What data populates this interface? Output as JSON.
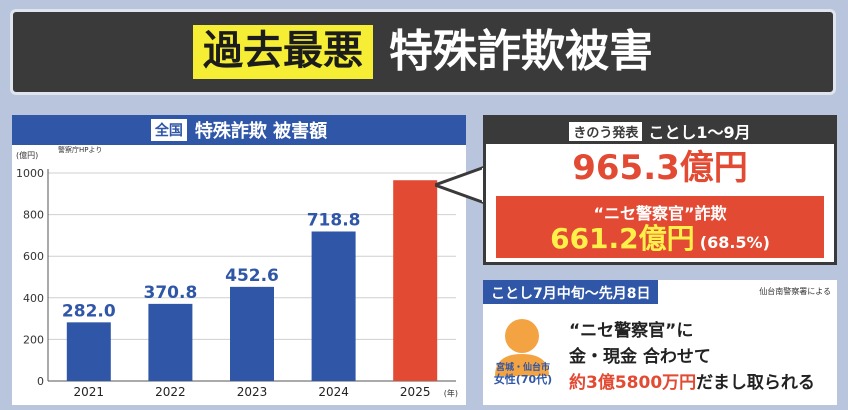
{
  "header": {
    "highlight": "過去最悪",
    "title": "特殊詐欺被害"
  },
  "chart_panel": {
    "chip": "全国",
    "title": "特殊詐欺 被害額",
    "source": "警察庁HPより",
    "y_unit": "(億円)",
    "x_unit": "(年)"
  },
  "chart_data": {
    "type": "bar",
    "categories": [
      "2021",
      "2022",
      "2023",
      "2024",
      "2025"
    ],
    "values": [
      282.0,
      370.8,
      452.6,
      718.8,
      965.3
    ],
    "value_labels": [
      "282.0",
      "370.8",
      "452.6",
      "718.8",
      ""
    ],
    "ylim": [
      0,
      1000
    ],
    "yticks": [
      0,
      200,
      400,
      600,
      800,
      1000
    ],
    "ylabel": "(億円)",
    "xlabel": "(年)",
    "colors": [
      "#2f56a7",
      "#2f56a7",
      "#2f56a7",
      "#2f56a7",
      "#e24a33"
    ]
  },
  "info": {
    "chip": "きのう発表",
    "period": "ことし1～9月",
    "total": "965.3億円",
    "sub_title": "“ニセ警察官”詐欺",
    "sub_amount": "661.2億円",
    "sub_pct": "(68.5%)"
  },
  "case": {
    "head": "ことし7月中旬～先月8日",
    "source": "仙台南警察署による",
    "victim_place": "宮城・仙台市",
    "victim": "女性(70代)",
    "line1": "“ニセ警察官”に",
    "line2": "金・現金 合わせて",
    "line3_hl": "約3億5800万円",
    "line3_rest": "だまし取られる"
  },
  "colors": {
    "blue": "#2f56a7",
    "red": "#e24a33",
    "yellow": "#f5ee34",
    "dark": "#3a3a3a"
  }
}
